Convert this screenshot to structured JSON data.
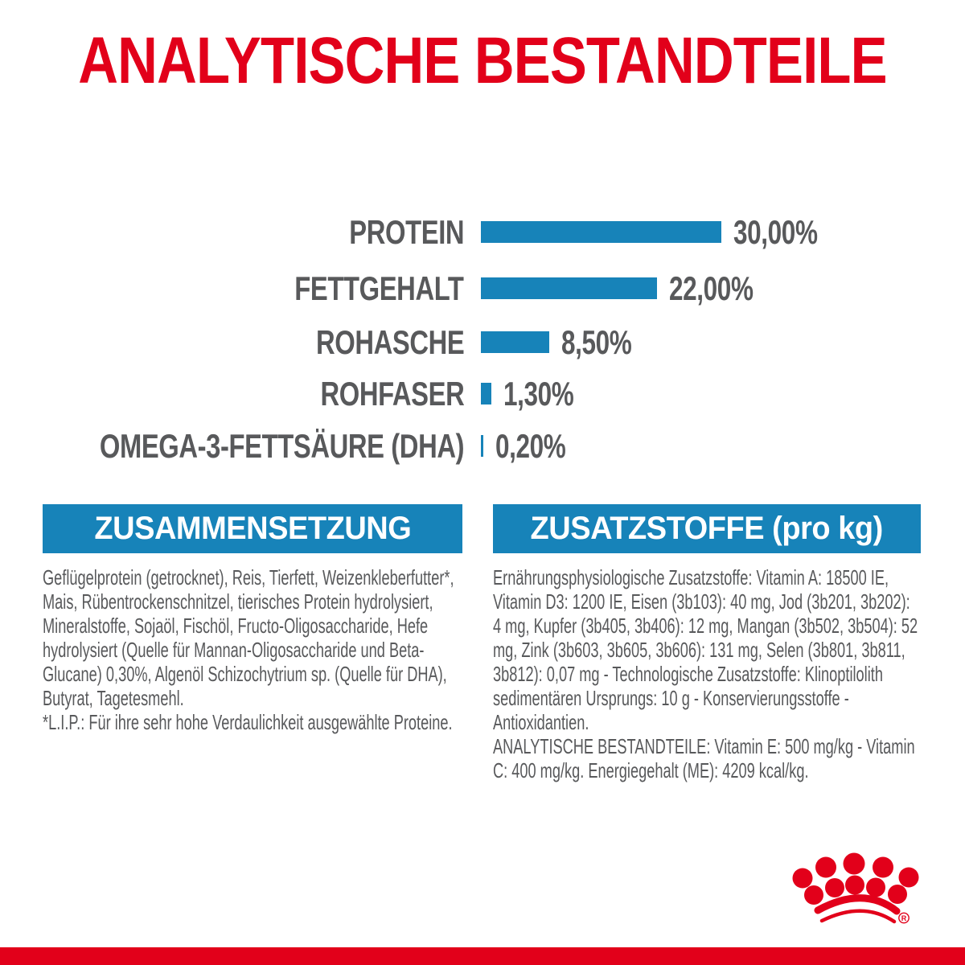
{
  "page": {
    "title": "ANALYTISCHE BESTANDTEILE",
    "brand_colors": {
      "red": "#E2001A",
      "blue": "#1783B9",
      "text_gray": "#58595B"
    }
  },
  "chart_data": {
    "type": "bar",
    "orientation": "horizontal",
    "title": "ANALYTISCHE BESTANDTEILE",
    "categories": [
      "PROTEIN",
      "FETTGEHALT",
      "ROHASCHE",
      "ROHFASER",
      "OMEGA-3-FETTSÄURE (DHA)"
    ],
    "values": [
      30.0,
      22.0,
      8.5,
      1.3,
      0.2
    ],
    "value_labels": [
      "30,00%",
      "22,00%",
      "8,50%",
      "1,30%",
      "0,20%"
    ],
    "unit": "%",
    "xlim": [
      0,
      30
    ],
    "bar_color": "#1783B9",
    "grid": false,
    "legend": false
  },
  "sections": {
    "composition": {
      "header": "ZUSAMMENSETZUNG",
      "body": "Geflügelprotein (getrocknet), Reis, Tierfett, Weizenkleberfutter*, Mais, Rübentrockenschnitzel, tierisches Protein hydrolysiert, Mineralstoffe, Sojaöl, Fischöl, Fructo-Oligosaccharide, Hefe hydrolysiert (Quelle für Mannan-Oligosaccharide und Beta-Glucane) 0,30%, Algenöl Schizochytrium sp. (Quelle für DHA), Butyrat, Tagetesmehl.",
      "footnote": "*L.I.P.: Für ihre sehr hohe Verdaulichkeit ausgewählte Proteine."
    },
    "additives": {
      "header": "ZUSATZSTOFFE (pro kg)",
      "body": "Ernährungsphysiologische Zusatzstoffe: Vitamin A: 18500 IE, Vitamin D3: 1200 IE, Eisen (3b103): 40 mg, Jod (3b201, 3b202): 4 mg, Kupfer (3b405, 3b406): 12 mg, Mangan (3b502, 3b504): 52 mg, Zink (3b603, 3b605, 3b606): 131 mg, Selen (3b801, 3b811, 3b812): 0,07 mg - Technologische Zusatzstoffe: Klinoptilolith sedimentären Ursprungs: 10 g - Konservierungsstoffe - Antioxidantien.",
      "analytical": "ANALYTISCHE BESTANDTEILE: Vitamin E: 500 mg/kg - Vitamin C: 400 mg/kg. Energiegehalt (ME): 4209 kcal/kg."
    }
  },
  "logo": {
    "name": "royal-canin-crown",
    "registered_mark": "R"
  }
}
